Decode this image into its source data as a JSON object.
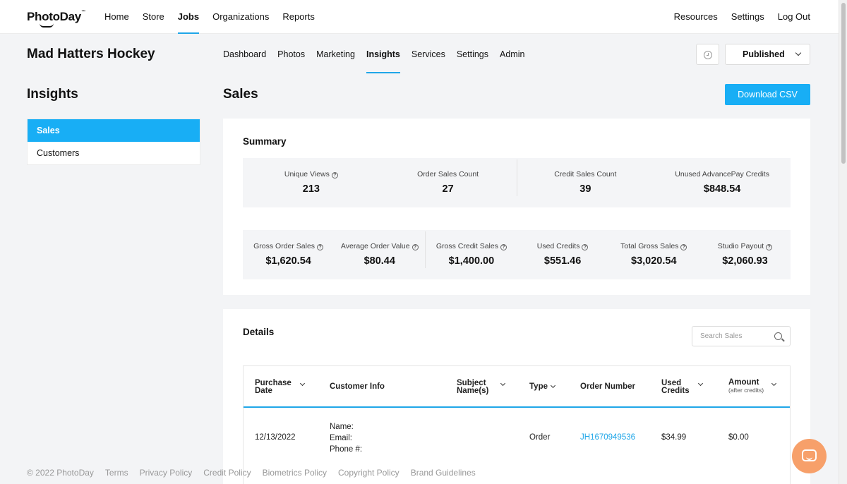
{
  "brand": {
    "name": "PhotoDay",
    "mark": "™",
    "accent": "#18aef5"
  },
  "nav": {
    "main": [
      "Home",
      "Store",
      "Jobs",
      "Organizations",
      "Reports"
    ],
    "active": "Jobs",
    "right": [
      "Resources",
      "Settings",
      "Log Out"
    ]
  },
  "job": {
    "title": "Mad Hatters Hockey",
    "subnav": [
      "Dashboard",
      "Photos",
      "Marketing",
      "Insights",
      "Services",
      "Settings",
      "Admin"
    ],
    "active_tab": "Insights",
    "status": "Published"
  },
  "sidebar": {
    "title": "Insights",
    "items": [
      {
        "label": "Sales",
        "active": true
      },
      {
        "label": "Customers",
        "active": false
      }
    ]
  },
  "page": {
    "title": "Sales",
    "download_label": "Download CSV"
  },
  "summary": {
    "title": "Summary",
    "row1": [
      {
        "label": "Unique Views",
        "value": "213",
        "help": true
      },
      {
        "label": "Order Sales Count",
        "value": "27",
        "help": false
      },
      {
        "label": "Credit Sales Count",
        "value": "39",
        "help": false
      },
      {
        "label": "Unused AdvancePay Credits",
        "value": "$848.54",
        "help": false
      }
    ],
    "row2": [
      {
        "label": "Gross Order Sales",
        "value": "$1,620.54",
        "help": true
      },
      {
        "label": "Average Order Value",
        "value": "$80.44",
        "help": true
      },
      {
        "label": "Gross Credit Sales",
        "value": "$1,400.00",
        "help": true
      },
      {
        "label": "Used Credits",
        "value": "$551.46",
        "help": true
      },
      {
        "label": "Total Gross Sales",
        "value": "$3,020.54",
        "help": true
      },
      {
        "label": "Studio Payout",
        "value": "$2,060.93",
        "help": true
      }
    ]
  },
  "details": {
    "title": "Details",
    "search_placeholder": "Search Sales",
    "columns": {
      "purchase_date": [
        "Purchase",
        "Date"
      ],
      "customer_info": "Customer Info",
      "subject_names": [
        "Subject",
        "Name(s)"
      ],
      "type": "Type",
      "order_number": "Order Number",
      "used_credits": [
        "Used",
        "Credits"
      ],
      "amount": "Amount",
      "amount_sub": "(after credits)"
    },
    "rows": [
      {
        "purchase_date": "12/13/2022",
        "customer_info": [
          "Name:",
          "Email:",
          "Phone #:"
        ],
        "subject_names": "",
        "type": "Order",
        "order_number": "JH1670949536",
        "used_credits": "$34.99",
        "amount": "$0.00"
      }
    ]
  },
  "footer": [
    "© 2022 PhotoDay",
    "Terms",
    "Privacy Policy",
    "Credit Policy",
    "Biometrics Policy",
    "Copyright Policy",
    "Brand Guidelines"
  ]
}
